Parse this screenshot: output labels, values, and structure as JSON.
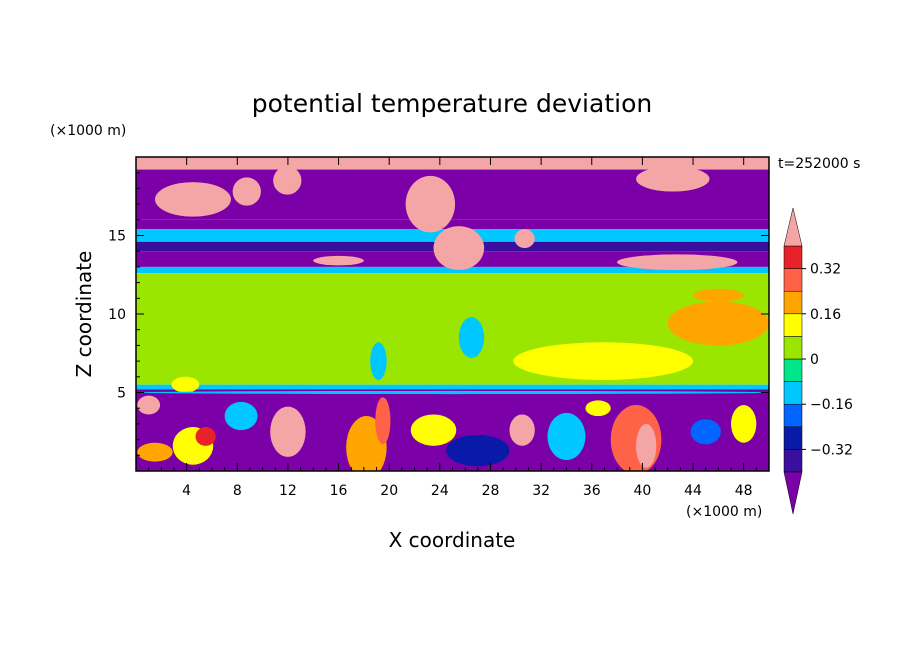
{
  "chart_data": {
    "type": "heatmap",
    "title": "potential temperature deviation",
    "time_label": "t=252000 s",
    "xlabel": "X coordinate",
    "ylabel": "Z coordinate",
    "x_unit": "(×1000 m)",
    "z_unit": "(×1000 m)",
    "xlim": [
      0,
      50
    ],
    "zlim": [
      0,
      20
    ],
    "x_ticks": [
      4,
      8,
      12,
      16,
      20,
      24,
      28,
      32,
      36,
      40,
      44,
      48
    ],
    "z_ticks": [
      5,
      10,
      15
    ],
    "colorbar": {
      "levels": [
        -0.4,
        -0.32,
        -0.24,
        -0.16,
        -0.08,
        0,
        0.08,
        0.16,
        0.24,
        0.32,
        0.4
      ],
      "tick_values": [
        -0.32,
        -0.16,
        0,
        0.16,
        0.32
      ],
      "tick_labels": [
        "−0.32",
        "−0.16",
        "0",
        "0.16",
        "0.32"
      ],
      "colors": [
        "#7b00a8",
        "#3a0fa0",
        "#0a1aa8",
        "#0066ff",
        "#00c8ff",
        "#00e68a",
        "#9be600",
        "#ffff00",
        "#ffa500",
        "#ff6347",
        "#e8222a",
        "#f4a6a6"
      ],
      "extend": "both"
    },
    "bands": [
      {
        "z_range": [
          19.2,
          20.0
        ],
        "value": 0.45,
        "desc": "upper layer top, large positive deviation"
      },
      {
        "z_range": [
          16.0,
          19.2
        ],
        "value": -0.45,
        "desc": "upper layer, large negative with positive patches"
      },
      {
        "z_range": [
          15.4,
          16.0
        ],
        "value": -0.45
      },
      {
        "z_range": [
          14.6,
          15.4
        ],
        "value": -0.14
      },
      {
        "z_range": [
          14.0,
          14.6
        ],
        "value": -0.36
      },
      {
        "z_range": [
          13.0,
          14.0
        ],
        "value": -0.45
      },
      {
        "z_range": [
          12.6,
          13.0
        ],
        "value": -0.14
      },
      {
        "z_range": [
          5.5,
          12.6
        ],
        "value": 0.04,
        "desc": "mid troposphere, near zero deviation"
      },
      {
        "z_range": [
          5.2,
          5.5
        ],
        "value": -0.14
      },
      {
        "z_range": [
          0.0,
          5.2
        ],
        "value": -0.42,
        "desc": "boundary layer, strong mixed deviations"
      }
    ]
  }
}
